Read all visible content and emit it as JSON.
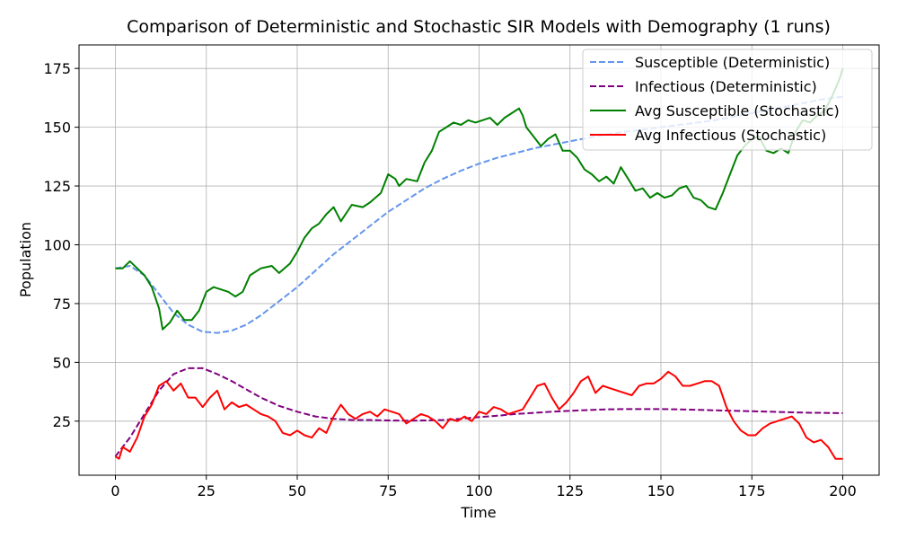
{
  "chart_data": {
    "type": "line",
    "title": "Comparison of Deterministic and Stochastic SIR Models with Demography (1 runs)",
    "xlabel": "Time",
    "ylabel": "Population",
    "xlim": [
      -10,
      210
    ],
    "ylim": [
      2,
      185
    ],
    "x_ticks": [
      0,
      25,
      50,
      75,
      100,
      125,
      150,
      175,
      200
    ],
    "y_ticks": [
      25,
      50,
      75,
      100,
      125,
      150,
      175
    ],
    "grid": true,
    "legend_position": "top-right",
    "series": [
      {
        "name": "Susceptible (Deterministic)",
        "style": "dashed",
        "color": "#6495ed",
        "points": [
          [
            0,
            90
          ],
          [
            4,
            91
          ],
          [
            8,
            87
          ],
          [
            12,
            79
          ],
          [
            16,
            71
          ],
          [
            20,
            66
          ],
          [
            24,
            63
          ],
          [
            28,
            62.5
          ],
          [
            32,
            63.5
          ],
          [
            36,
            66
          ],
          [
            40,
            70
          ],
          [
            45,
            76
          ],
          [
            50,
            82
          ],
          [
            55,
            89
          ],
          [
            60,
            96
          ],
          [
            65,
            102
          ],
          [
            70,
            108
          ],
          [
            75,
            114
          ],
          [
            80,
            119
          ],
          [
            85,
            124
          ],
          [
            90,
            128
          ],
          [
            95,
            131.5
          ],
          [
            100,
            134.5
          ],
          [
            105,
            137
          ],
          [
            110,
            139
          ],
          [
            115,
            141
          ],
          [
            120,
            142.5
          ],
          [
            125,
            144
          ],
          [
            130,
            145.5
          ],
          [
            135,
            147
          ],
          [
            140,
            148
          ],
          [
            145,
            149
          ],
          [
            150,
            150
          ],
          [
            155,
            151
          ],
          [
            160,
            152
          ],
          [
            165,
            153
          ],
          [
            170,
            154.5
          ],
          [
            175,
            156
          ],
          [
            180,
            157.5
          ],
          [
            185,
            159
          ],
          [
            190,
            160.5
          ],
          [
            195,
            162
          ],
          [
            200,
            163
          ]
        ]
      },
      {
        "name": "Infectious (Deterministic)",
        "style": "dashed",
        "color": "#800080",
        "points": [
          [
            0,
            10
          ],
          [
            4,
            18
          ],
          [
            8,
            28
          ],
          [
            12,
            38
          ],
          [
            16,
            45
          ],
          [
            20,
            47.5
          ],
          [
            24,
            47.5
          ],
          [
            28,
            45
          ],
          [
            32,
            42
          ],
          [
            36,
            38.5
          ],
          [
            40,
            35
          ],
          [
            45,
            31.5
          ],
          [
            50,
            29
          ],
          [
            55,
            27
          ],
          [
            60,
            26
          ],
          [
            65,
            25.5
          ],
          [
            70,
            25.5
          ],
          [
            75,
            25.3
          ],
          [
            80,
            25.2
          ],
          [
            85,
            25.3
          ],
          [
            90,
            25.5
          ],
          [
            95,
            26
          ],
          [
            100,
            26.7
          ],
          [
            105,
            27.3
          ],
          [
            110,
            28
          ],
          [
            115,
            28.5
          ],
          [
            120,
            29
          ],
          [
            125,
            29.4
          ],
          [
            130,
            29.7
          ],
          [
            135,
            30
          ],
          [
            140,
            30.1
          ],
          [
            145,
            30.1
          ],
          [
            150,
            30.1
          ],
          [
            155,
            30
          ],
          [
            160,
            29.8
          ],
          [
            165,
            29.6
          ],
          [
            170,
            29.4
          ],
          [
            175,
            29.2
          ],
          [
            180,
            29
          ],
          [
            185,
            28.8
          ],
          [
            190,
            28.6
          ],
          [
            195,
            28.5
          ],
          [
            200,
            28.4
          ]
        ]
      },
      {
        "name": "Avg Susceptible (Stochastic)",
        "style": "solid",
        "color": "#008000",
        "points": [
          [
            0,
            90
          ],
          [
            2,
            90
          ],
          [
            4,
            93
          ],
          [
            6,
            90
          ],
          [
            8,
            87
          ],
          [
            10,
            82
          ],
          [
            12,
            73
          ],
          [
            13,
            64
          ],
          [
            15,
            67
          ],
          [
            17,
            72
          ],
          [
            19,
            68
          ],
          [
            21,
            68
          ],
          [
            23,
            72
          ],
          [
            25,
            80
          ],
          [
            27,
            82
          ],
          [
            29,
            81
          ],
          [
            31,
            80
          ],
          [
            33,
            78
          ],
          [
            35,
            80
          ],
          [
            37,
            87
          ],
          [
            40,
            90
          ],
          [
            43,
            91
          ],
          [
            45,
            88
          ],
          [
            48,
            92
          ],
          [
            50,
            97
          ],
          [
            52,
            103
          ],
          [
            54,
            107
          ],
          [
            56,
            109
          ],
          [
            58,
            113
          ],
          [
            60,
            116
          ],
          [
            62,
            110
          ],
          [
            65,
            117
          ],
          [
            68,
            116
          ],
          [
            70,
            118
          ],
          [
            73,
            122
          ],
          [
            75,
            130
          ],
          [
            77,
            128
          ],
          [
            78,
            125
          ],
          [
            80,
            128
          ],
          [
            83,
            127
          ],
          [
            85,
            135
          ],
          [
            87,
            140
          ],
          [
            89,
            148
          ],
          [
            91,
            150
          ],
          [
            93,
            152
          ],
          [
            95,
            151
          ],
          [
            97,
            153
          ],
          [
            99,
            152
          ],
          [
            101,
            153
          ],
          [
            103,
            154
          ],
          [
            105,
            151
          ],
          [
            107,
            154
          ],
          [
            109,
            156
          ],
          [
            111,
            158
          ],
          [
            112,
            155
          ],
          [
            113,
            150
          ],
          [
            115,
            146
          ],
          [
            117,
            142
          ],
          [
            119,
            145
          ],
          [
            121,
            147
          ],
          [
            123,
            140
          ],
          [
            125,
            140
          ],
          [
            127,
            137
          ],
          [
            129,
            132
          ],
          [
            131,
            130
          ],
          [
            133,
            127
          ],
          [
            135,
            129
          ],
          [
            137,
            126
          ],
          [
            139,
            133
          ],
          [
            141,
            128
          ],
          [
            143,
            123
          ],
          [
            145,
            124
          ],
          [
            147,
            120
          ],
          [
            149,
            122
          ],
          [
            151,
            120
          ],
          [
            153,
            121
          ],
          [
            155,
            124
          ],
          [
            157,
            125
          ],
          [
            159,
            120
          ],
          [
            161,
            119
          ],
          [
            163,
            116
          ],
          [
            165,
            115
          ],
          [
            167,
            122
          ],
          [
            169,
            130
          ],
          [
            171,
            138
          ],
          [
            173,
            142
          ],
          [
            175,
            145
          ],
          [
            177,
            146
          ],
          [
            179,
            140
          ],
          [
            181,
            139
          ],
          [
            183,
            141
          ],
          [
            185,
            139
          ],
          [
            187,
            148
          ],
          [
            189,
            153
          ],
          [
            191,
            152
          ],
          [
            193,
            155
          ],
          [
            195,
            157
          ],
          [
            197,
            163
          ],
          [
            199,
            170
          ],
          [
            200,
            175
          ]
        ]
      },
      {
        "name": "Avg Infectious (Stochastic)",
        "style": "solid",
        "color": "#ff0000",
        "points": [
          [
            0,
            10
          ],
          [
            1,
            9
          ],
          [
            2,
            14
          ],
          [
            4,
            12
          ],
          [
            6,
            18
          ],
          [
            8,
            27
          ],
          [
            10,
            32
          ],
          [
            12,
            40
          ],
          [
            14,
            42
          ],
          [
            16,
            38
          ],
          [
            18,
            41
          ],
          [
            20,
            35
          ],
          [
            22,
            35
          ],
          [
            24,
            31
          ],
          [
            26,
            35
          ],
          [
            28,
            38
          ],
          [
            30,
            30
          ],
          [
            32,
            33
          ],
          [
            34,
            31
          ],
          [
            36,
            32
          ],
          [
            38,
            30
          ],
          [
            40,
            28
          ],
          [
            42,
            27
          ],
          [
            44,
            25
          ],
          [
            46,
            20
          ],
          [
            48,
            19
          ],
          [
            50,
            21
          ],
          [
            52,
            19
          ],
          [
            54,
            18
          ],
          [
            56,
            22
          ],
          [
            58,
            20
          ],
          [
            60,
            27
          ],
          [
            62,
            32
          ],
          [
            64,
            28
          ],
          [
            66,
            26
          ],
          [
            68,
            28
          ],
          [
            70,
            29
          ],
          [
            72,
            27
          ],
          [
            74,
            30
          ],
          [
            76,
            29
          ],
          [
            78,
            28
          ],
          [
            80,
            24
          ],
          [
            82,
            26
          ],
          [
            84,
            28
          ],
          [
            86,
            27
          ],
          [
            88,
            25
          ],
          [
            90,
            22
          ],
          [
            92,
            26
          ],
          [
            94,
            25
          ],
          [
            96,
            27
          ],
          [
            98,
            25
          ],
          [
            100,
            29
          ],
          [
            102,
            28
          ],
          [
            104,
            31
          ],
          [
            106,
            30
          ],
          [
            108,
            28
          ],
          [
            110,
            29
          ],
          [
            112,
            30
          ],
          [
            114,
            35
          ],
          [
            116,
            40
          ],
          [
            118,
            41
          ],
          [
            120,
            35
          ],
          [
            122,
            30
          ],
          [
            124,
            33
          ],
          [
            126,
            37
          ],
          [
            128,
            42
          ],
          [
            130,
            44
          ],
          [
            132,
            37
          ],
          [
            134,
            40
          ],
          [
            136,
            39
          ],
          [
            138,
            38
          ],
          [
            140,
            37
          ],
          [
            142,
            36
          ],
          [
            144,
            40
          ],
          [
            146,
            41
          ],
          [
            148,
            41
          ],
          [
            150,
            43
          ],
          [
            152,
            46
          ],
          [
            154,
            44
          ],
          [
            156,
            40
          ],
          [
            158,
            40
          ],
          [
            160,
            41
          ],
          [
            162,
            42
          ],
          [
            164,
            42
          ],
          [
            166,
            40
          ],
          [
            168,
            31
          ],
          [
            170,
            25
          ],
          [
            172,
            21
          ],
          [
            174,
            19
          ],
          [
            176,
            19
          ],
          [
            178,
            22
          ],
          [
            180,
            24
          ],
          [
            182,
            25
          ],
          [
            184,
            26
          ],
          [
            186,
            27
          ],
          [
            188,
            24
          ],
          [
            190,
            18
          ],
          [
            192,
            16
          ],
          [
            194,
            17
          ],
          [
            196,
            14
          ],
          [
            198,
            9
          ],
          [
            200,
            9
          ]
        ]
      }
    ]
  }
}
